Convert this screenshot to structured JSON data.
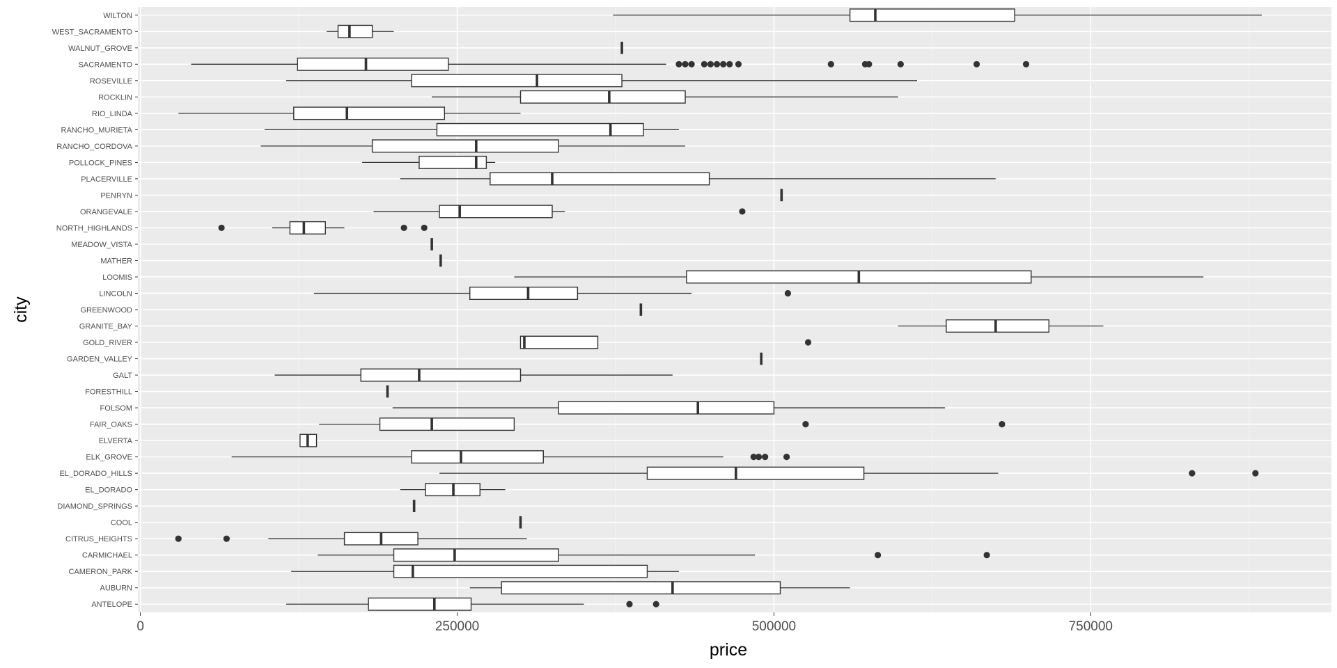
{
  "chart_data": {
    "type": "boxplot",
    "title": "",
    "xlabel": "price",
    "ylabel": "city",
    "xlim": [
      -2000,
      940000
    ],
    "xticks": [
      0,
      250000,
      500000,
      750000
    ],
    "xtick_labels": [
      "0",
      "250000",
      "500000",
      "750000"
    ],
    "orientation": "horizontal",
    "grid": true,
    "categories": [
      "ANTELOPE",
      "AUBURN",
      "CAMERON_PARK",
      "CARMICHAEL",
      "CITRUS_HEIGHTS",
      "COOL",
      "DIAMOND_SPRINGS",
      "EL_DORADO",
      "EL_DORADO_HILLS",
      "ELK_GROVE",
      "ELVERTA",
      "FAIR_OAKS",
      "FOLSOM",
      "FORESTHILL",
      "GALT",
      "GARDEN_VALLEY",
      "GOLD_RIVER",
      "GRANITE_BAY",
      "GREENWOOD",
      "LINCOLN",
      "LOOMIS",
      "MATHER",
      "MEADOW_VISTA",
      "NORTH_HIGHLANDS",
      "ORANGEVALE",
      "PENRYN",
      "PLACERVILLE",
      "POLLOCK_PINES",
      "RANCHO_CORDOVA",
      "RANCHO_MURIETA",
      "RIO_LINDA",
      "ROCKLIN",
      "ROSEVILLE",
      "SACRAMENTO",
      "WALNUT_GROVE",
      "WEST_SACRAMENTO",
      "WILTON"
    ],
    "boxes": [
      {
        "city": "ANTELOPE",
        "min": 115000,
        "q1": 180000,
        "median": 232000,
        "q3": 261000,
        "max": 350000,
        "outliers": [
          386000,
          407000
        ]
      },
      {
        "city": "AUBURN",
        "min": 260000,
        "q1": 285000,
        "median": 420000,
        "q3": 505000,
        "max": 560000,
        "outliers": []
      },
      {
        "city": "CAMERON_PARK",
        "min": 119000,
        "q1": 200000,
        "median": 215000,
        "q3": 400000,
        "max": 425000,
        "outliers": []
      },
      {
        "city": "CARMICHAEL",
        "min": 140000,
        "q1": 200000,
        "median": 248000,
        "q3": 330000,
        "max": 485000,
        "outliers": [
          582000,
          668000
        ]
      },
      {
        "city": "CITRUS_HEIGHTS",
        "min": 101000,
        "q1": 161000,
        "median": 190000,
        "q3": 219000,
        "max": 305000,
        "outliers": [
          30000,
          68000
        ]
      },
      {
        "city": "COOL",
        "min": 300000,
        "q1": 300000,
        "median": 300000,
        "q3": 300000,
        "max": 300000,
        "outliers": []
      },
      {
        "city": "DIAMOND_SPRINGS",
        "min": 216000,
        "q1": 216000,
        "median": 216000,
        "q3": 216000,
        "max": 216000,
        "outliers": []
      },
      {
        "city": "EL_DORADO",
        "min": 205000,
        "q1": 225000,
        "median": 247000,
        "q3": 268000,
        "max": 288000,
        "outliers": []
      },
      {
        "city": "EL_DORADO_HILLS",
        "min": 236000,
        "q1": 400000,
        "median": 470000,
        "q3": 571000,
        "max": 677000,
        "outliers": [
          830000,
          880000
        ]
      },
      {
        "city": "ELK_GROVE",
        "min": 72000,
        "q1": 214000,
        "median": 253000,
        "q3": 318000,
        "max": 460000,
        "outliers": [
          484000,
          488000,
          493000,
          510000
        ]
      },
      {
        "city": "ELVERTA",
        "min": 126000,
        "q1": 126000,
        "median": 132000,
        "q3": 139000,
        "max": 139000,
        "outliers": []
      },
      {
        "city": "FAIR_OAKS",
        "min": 141000,
        "q1": 189000,
        "median": 230000,
        "q3": 295000,
        "max": 295000,
        "outliers": [
          525000,
          680000
        ]
      },
      {
        "city": "FOLSOM",
        "min": 199000,
        "q1": 330000,
        "median": 440000,
        "q3": 500000,
        "max": 635000,
        "outliers": []
      },
      {
        "city": "FORESTHILL",
        "min": 195000,
        "q1": 195000,
        "median": 195000,
        "q3": 195000,
        "max": 195000,
        "outliers": []
      },
      {
        "city": "GALT",
        "min": 106000,
        "q1": 174000,
        "median": 220000,
        "q3": 300000,
        "max": 420000,
        "outliers": []
      },
      {
        "city": "GARDEN_VALLEY",
        "min": 490000,
        "q1": 490000,
        "median": 490000,
        "q3": 490000,
        "max": 490000,
        "outliers": []
      },
      {
        "city": "GOLD_RIVER",
        "min": 300000,
        "q1": 300000,
        "median": 303000,
        "q3": 361000,
        "max": 361000,
        "outliers": [
          527000
        ]
      },
      {
        "city": "GRANITE_BAY",
        "min": 598000,
        "q1": 636000,
        "median": 675000,
        "q3": 717000,
        "max": 760000,
        "outliers": []
      },
      {
        "city": "GREENWOOD",
        "min": 395000,
        "q1": 395000,
        "median": 395000,
        "q3": 395000,
        "max": 395000,
        "outliers": []
      },
      {
        "city": "LINCOLN",
        "min": 137000,
        "q1": 260000,
        "median": 306000,
        "q3": 345000,
        "max": 435000,
        "outliers": [
          511000
        ]
      },
      {
        "city": "LOOMIS",
        "min": 295000,
        "q1": 431000,
        "median": 567000,
        "q3": 703000,
        "max": 839000,
        "outliers": []
      },
      {
        "city": "MATHER",
        "min": 237000,
        "q1": 237000,
        "median": 237000,
        "q3": 237000,
        "max": 237000,
        "outliers": []
      },
      {
        "city": "MEADOW_VISTA",
        "min": 230000,
        "q1": 230000,
        "median": 230000,
        "q3": 230000,
        "max": 230000,
        "outliers": []
      },
      {
        "city": "NORTH_HIGHLANDS",
        "min": 104000,
        "q1": 118000,
        "median": 129000,
        "q3": 146000,
        "max": 161000,
        "outliers": [
          64000,
          208000,
          224000
        ]
      },
      {
        "city": "ORANGEVALE",
        "min": 184000,
        "q1": 236000,
        "median": 252000,
        "q3": 325000,
        "max": 335000,
        "outliers": [
          475000
        ]
      },
      {
        "city": "PENRYN",
        "min": 506000,
        "q1": 506000,
        "median": 506000,
        "q3": 506000,
        "max": 506000,
        "outliers": []
      },
      {
        "city": "PLACERVILLE",
        "min": 205000,
        "q1": 276000,
        "median": 325000,
        "q3": 449000,
        "max": 675000,
        "outliers": []
      },
      {
        "city": "POLLOCK_PINES",
        "min": 175000,
        "q1": 220000,
        "median": 265000,
        "q3": 273000,
        "max": 280000,
        "outliers": []
      },
      {
        "city": "RANCHO_CORDOVA",
        "min": 95000,
        "q1": 183000,
        "median": 265000,
        "q3": 330000,
        "max": 430000,
        "outliers": []
      },
      {
        "city": "RANCHO_MURIETA",
        "min": 98000,
        "q1": 234000,
        "median": 371000,
        "q3": 397000,
        "max": 425000,
        "outliers": []
      },
      {
        "city": "RIO_LINDA",
        "min": 30000,
        "q1": 121000,
        "median": 163000,
        "q3": 240000,
        "max": 300000,
        "outliers": []
      },
      {
        "city": "ROCKLIN",
        "min": 230000,
        "q1": 300000,
        "median": 370000,
        "q3": 430000,
        "max": 598000,
        "outliers": []
      },
      {
        "city": "ROSEVILLE",
        "min": 115000,
        "q1": 214000,
        "median": 313000,
        "q3": 380000,
        "max": 613000,
        "outliers": []
      },
      {
        "city": "SACRAMENTO",
        "min": 40000,
        "q1": 124000,
        "median": 178000,
        "q3": 243000,
        "max": 415000,
        "outliers": [
          425000,
          430000,
          435000,
          445000,
          450000,
          455000,
          460000,
          465000,
          472000,
          545000,
          572000,
          575000,
          600000,
          660000,
          699000
        ]
      },
      {
        "city": "WALNUT_GROVE",
        "min": 380000,
        "q1": 380000,
        "median": 380000,
        "q3": 380000,
        "max": 380000,
        "outliers": []
      },
      {
        "city": "WEST_SACRAMENTO",
        "min": 147000,
        "q1": 156000,
        "median": 165000,
        "q3": 183000,
        "max": 200000,
        "outliers": []
      },
      {
        "city": "WILTON",
        "min": 373000,
        "q1": 560000,
        "median": 580000,
        "q3": 690000,
        "max": 885000,
        "outliers": []
      }
    ]
  }
}
